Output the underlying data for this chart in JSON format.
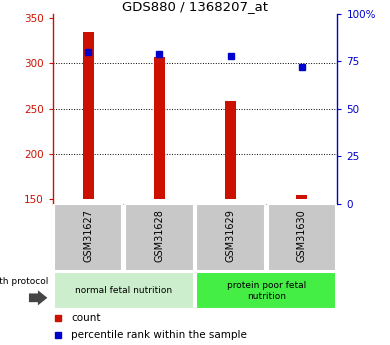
{
  "title": "GDS880 / 1368207_at",
  "samples": [
    "GSM31627",
    "GSM31628",
    "GSM31629",
    "GSM31630"
  ],
  "count_values": [
    335,
    307,
    259,
    155
  ],
  "percentile_values": [
    80,
    79,
    78,
    72
  ],
  "ylim_left": [
    145,
    355
  ],
  "ylim_right": [
    0,
    100
  ],
  "yticks_left": [
    150,
    200,
    250,
    300,
    350
  ],
  "yticks_right": [
    0,
    25,
    50,
    75,
    100
  ],
  "bar_color": "#cc1100",
  "dot_color": "#0000cc",
  "bar_bottom": 150,
  "groups": [
    {
      "label": "normal fetal nutrition",
      "color": "#cceecc",
      "start": 0,
      "end": 2
    },
    {
      "label": "protein poor fetal\nnutrition",
      "color": "#44ee44",
      "start": 2,
      "end": 4
    }
  ],
  "group_label": "growth protocol",
  "legend_count_label": "count",
  "legend_percentile_label": "percentile rank within the sample",
  "sample_box_color": "#c8c8c8",
  "bar_width": 0.15,
  "figsize": [
    3.9,
    3.45
  ],
  "dpi": 100
}
